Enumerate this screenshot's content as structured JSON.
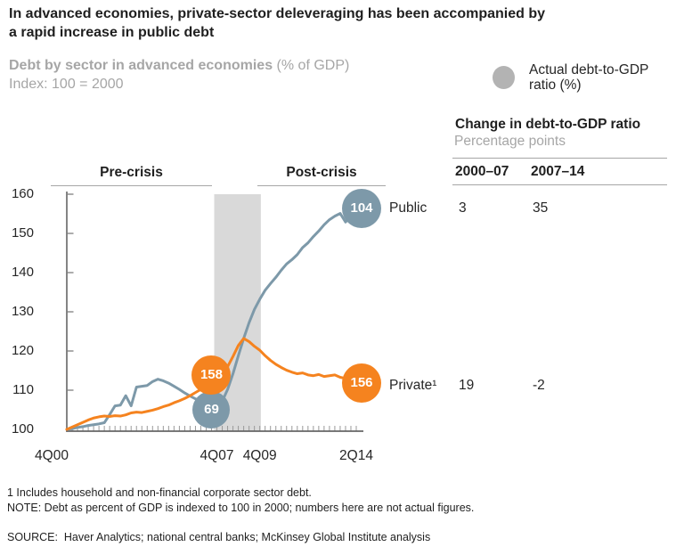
{
  "header": {
    "title_line1": "In advanced economies, private-sector deleveraging has been accompanied by",
    "title_line2": "a rapid increase in public debt",
    "subtitle_bold": "Debt by sector in advanced economies",
    "subtitle_note": " (% of GDP)",
    "subtitle_line2": "Index: 100 = 2000"
  },
  "legend": {
    "marker_color": "#b3b3b3",
    "label_line1": "Actual debt-to-GDP",
    "label_line2": "ratio (%)"
  },
  "table": {
    "title": "Change in debt-to-GDP ratio",
    "subtitle": "Percentage points",
    "columns": [
      "2000–07",
      "2007–14"
    ],
    "rows": [
      {
        "label": "Public",
        "values": [
          "3",
          "35"
        ]
      },
      {
        "label": "Private¹",
        "values": [
          "19",
          "-2"
        ]
      }
    ]
  },
  "chart_data": {
    "type": "line",
    "title": "Debt by sector in advanced economies (% of GDP)",
    "index_note": "Index: 100 = 2000",
    "x_axis": {
      "unit": "quarters",
      "ticks": [
        {
          "label": "4Q00",
          "q": 0
        },
        {
          "label": "4Q07",
          "q": 28
        },
        {
          "label": "4Q09",
          "q": 36
        },
        {
          "label": "2Q14",
          "q": 54
        }
      ]
    },
    "y_axis": {
      "min": 100,
      "max": 160,
      "tick_step": 10,
      "ticks": [
        160,
        150,
        140,
        130,
        120,
        110,
        100
      ]
    },
    "period_labels": [
      {
        "label": "Pre-crisis"
      },
      {
        "label": "Post-crisis"
      }
    ],
    "recession_band": {
      "from_q": 27.5,
      "to_q": 36.2,
      "from_period": "4Q07",
      "to_period": "4Q09",
      "color": "#d9d9d9"
    },
    "series": [
      {
        "name": "Public",
        "color": "#7d99a9",
        "values": [
          100,
          100.2,
          100.5,
          100.7,
          101,
          101.2,
          101.4,
          101.7,
          103.8,
          106,
          106.2,
          108.6,
          106,
          110.8,
          111,
          111.2,
          112.2,
          112.8,
          112.4,
          111.8,
          111,
          110.2,
          109.3,
          108.5,
          107.8,
          107.2,
          106.6,
          106.1,
          105.8,
          107.2,
          110.2,
          114.2,
          118.8,
          123.2,
          127.2,
          130.6,
          133.2,
          135.5,
          137.2,
          138.8,
          140.6,
          142.2,
          143.3,
          144.6,
          146.4,
          147.6,
          149.2,
          150.6,
          152.2,
          153.5,
          154.4,
          155.1,
          152.9,
          154.4,
          156.4
        ]
      },
      {
        "name": "Private¹",
        "color": "#f5831f",
        "values": [
          100,
          100.6,
          101.2,
          101.8,
          102.4,
          102.9,
          103.2,
          103.4,
          103.3,
          103.5,
          103.4,
          103.7,
          104.2,
          104.4,
          104.3,
          104.6,
          104.9,
          105.3,
          105.8,
          106.2,
          106.8,
          107.3,
          107.9,
          108.6,
          109.4,
          110.2,
          111,
          111.9,
          112.8,
          114.2,
          116,
          118.6,
          121.4,
          123.2,
          122.4,
          121.2,
          120.2,
          118.8,
          117.6,
          116.6,
          115.8,
          115.1,
          114.6,
          114.2,
          114.4,
          113.9,
          113.7,
          114,
          113.5,
          113.7,
          113.9,
          113.3,
          113,
          112.5,
          112
        ]
      }
    ],
    "callouts": [
      {
        "label": "69",
        "series": "Public",
        "period": "4Q07",
        "q": 27,
        "index_value": 105.0,
        "r": 21,
        "color": "#7d99a9"
      },
      {
        "label": "158",
        "series": "Private",
        "period": "4Q07",
        "q": 27,
        "index_value": 113.9,
        "r": 22,
        "color": "#f5831f"
      },
      {
        "label": "104",
        "series": "Public",
        "period": "2Q14",
        "q": 55,
        "index_value": 156.4,
        "r": 22,
        "color": "#7d99a9"
      },
      {
        "label": "156",
        "series": "Private",
        "period": "2Q14",
        "q": 55,
        "index_value": 111.8,
        "r": 22,
        "color": "#f5831f"
      }
    ]
  },
  "footnotes": {
    "line1": "1 Includes household and non-financial corporate sector debt.",
    "line2": "NOTE: Debt as percent of GDP is indexed to 100 in 2000; numbers here are not actual figures."
  },
  "source": "SOURCE:  Haver Analytics; national central banks; McKinsey Global Institute analysis"
}
